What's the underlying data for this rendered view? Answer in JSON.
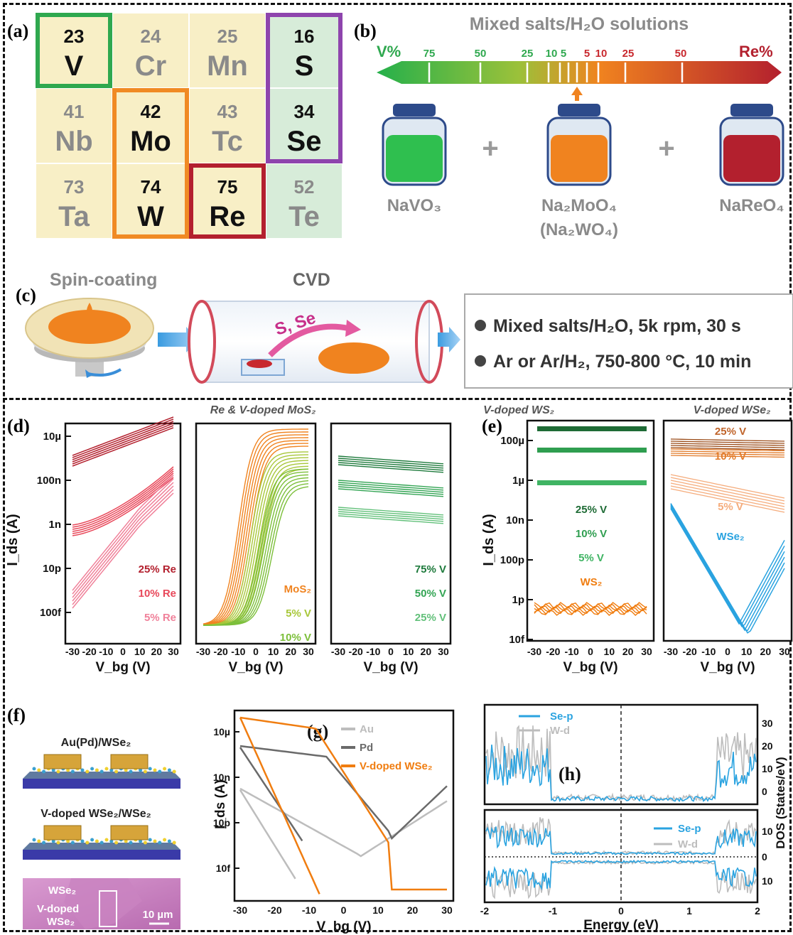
{
  "panel_labels": {
    "a": "(a)",
    "b": "(b)",
    "c": "(c)",
    "d": "(d)",
    "e": "(e)",
    "f": "(f)",
    "g": "(g)",
    "h": "(h)"
  },
  "periodic_table": [
    {
      "num": "23",
      "sym": "V",
      "frame": "#2fa84f",
      "active": true
    },
    {
      "num": "24",
      "sym": "Cr",
      "frame": "",
      "active": false
    },
    {
      "num": "25",
      "sym": "Mn",
      "frame": "",
      "active": false
    },
    {
      "num": "16",
      "sym": "S",
      "frame": "#8e44ad",
      "active": true
    },
    {
      "num": "41",
      "sym": "Nb",
      "frame": "",
      "active": false
    },
    {
      "num": "42",
      "sym": "Mo",
      "frame": "#f08a24",
      "active": true
    },
    {
      "num": "43",
      "sym": "Tc",
      "frame": "",
      "active": false
    },
    {
      "num": "34",
      "sym": "Se",
      "frame": "#8e44ad",
      "active": true
    },
    {
      "num": "73",
      "sym": "Ta",
      "frame": "",
      "active": false
    },
    {
      "num": "74",
      "sym": "W",
      "frame": "#f08a24",
      "active": true
    },
    {
      "num": "75",
      "sym": "Re",
      "frame": "#b3202e",
      "active": true
    },
    {
      "num": "52",
      "sym": "Te",
      "frame": "",
      "active": false
    }
  ],
  "panel_b": {
    "title": "Mixed salts/H₂O solutions",
    "left_label": "V%",
    "right_label": "Re%",
    "v_ticks": [
      "75",
      "50",
      "25",
      "10",
      "5"
    ],
    "re_ticks": [
      "5",
      "10",
      "25",
      "50"
    ],
    "bottle_labels": [
      "NaVO₃",
      "Na₂MoO₄",
      "(Na₂WO₄)",
      "NaReO₄"
    ],
    "plus": "+",
    "colors": {
      "v": "#2fbf4f",
      "mo": "#f0831f",
      "re": "#b3202e"
    }
  },
  "panel_c": {
    "spin_label": "Spin-coating",
    "cvd_label": "CVD",
    "precursor": "S, Se",
    "conditions": [
      "Mixed salts/H₂O, 5k rpm, 30 s",
      "Ar or Ar/H₂, 750-800 °C, 10 min"
    ]
  },
  "panel_d": {
    "title": "Re & V-doped MoS₂",
    "y_ticks": [
      "10µ",
      "100n",
      "1n",
      "10p",
      "100f"
    ],
    "y_label": "I_ds (A)",
    "x_ticks": [
      "-30",
      "-20",
      "-10",
      "0",
      "10",
      "20",
      "30"
    ],
    "x_label": "V_bg (V)",
    "sub1_legend": [
      "25% Re",
      "10% Re",
      "5% Re"
    ],
    "sub2_legend": [
      "MoS₂",
      "5% V",
      "10% V"
    ],
    "sub3_legend": [
      "75% V",
      "50% V",
      "25% V"
    ]
  },
  "panel_e": {
    "title1": "V-doped WS₂",
    "title2": "V-doped WSe₂",
    "y_ticks": [
      "100µ",
      "1µ",
      "10n",
      "100p",
      "1p",
      "10f"
    ],
    "y_label": "I_ds (A)",
    "x_label": "V_bg (V)",
    "sub1_legend": [
      "25% V",
      "10% V",
      "5% V",
      "WS₂"
    ],
    "sub2_labels": [
      "25% V",
      "10% V",
      "5% V",
      "WSe₂"
    ]
  },
  "panel_f": {
    "label1": "Au(Pd)/WSe₂",
    "label2": "V-doped WSe₂/WSe₂",
    "micro_label1": "WSe₂",
    "micro_label2": "V-doped",
    "micro_label3": "WSe₂",
    "scale": "10 µm"
  },
  "panel_g": {
    "y_ticks": [
      "10µ",
      "10n",
      "10p",
      "10f"
    ],
    "x_ticks": [
      "-30",
      "-20",
      "-10",
      "0",
      "10",
      "20",
      "30"
    ],
    "y_label": "I_ds (A)",
    "x_label": "V_bg (V)",
    "legend": [
      "Au",
      "Pd",
      "V-doped WSe₂"
    ]
  },
  "panel_h": {
    "legend": [
      "Se-p",
      "W-d"
    ],
    "y_ticks_top": [
      "30",
      "20",
      "10",
      "0"
    ],
    "y_ticks_bottom": [
      "10",
      "0",
      "10"
    ],
    "x_ticks": [
      "-2",
      "-1",
      "0",
      "1",
      "2"
    ],
    "x_label": "Energy (eV)",
    "y_label": "DOS (States/eV)"
  }
}
